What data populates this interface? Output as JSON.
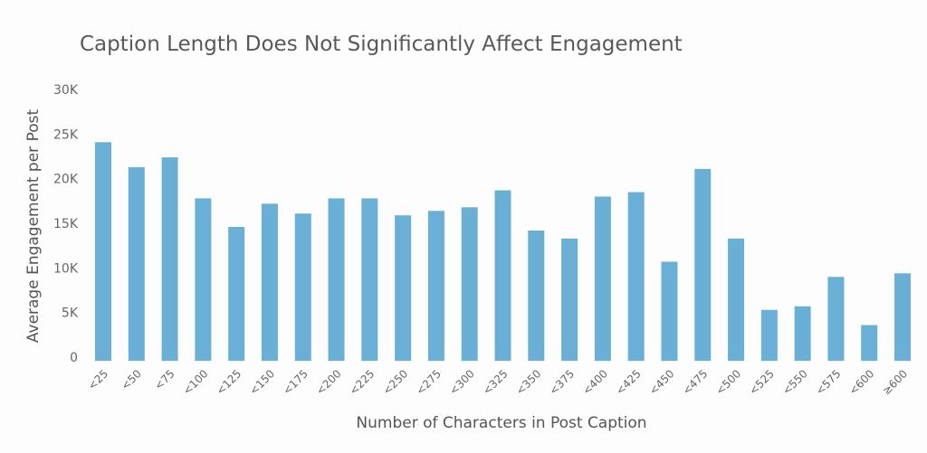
{
  "chart_data": {
    "type": "bar",
    "title": "Caption Length Does Not Significantly Affect Engagement",
    "xlabel": "Number of Characters in Post Caption",
    "ylabel": "Average Engagement per Post",
    "ylim": [
      0,
      30000
    ],
    "yticks": [
      0,
      5000,
      10000,
      15000,
      20000,
      25000,
      30000
    ],
    "ytick_labels": [
      "0",
      "5K",
      "10K",
      "15K",
      "20K",
      "25K",
      "30K"
    ],
    "grid": false,
    "bar_color": "#6aafd6",
    "categories": [
      "<25",
      "<50",
      "<75",
      "<100",
      "<125",
      "<150",
      "<175",
      "<200",
      "<225",
      "<250",
      "<275",
      "<300",
      "<325",
      "<350",
      "<375",
      "<400",
      "<425",
      "<450",
      "<475",
      "<500",
      "<525",
      "<550",
      "<575",
      "<600",
      "≥600"
    ],
    "values": [
      24400,
      21600,
      22700,
      18100,
      14900,
      17500,
      16400,
      18100,
      18100,
      16200,
      16700,
      17100,
      19000,
      14500,
      13600,
      18300,
      18800,
      11000,
      21400,
      13600,
      5600,
      6000,
      9300,
      3900,
      9700
    ]
  }
}
